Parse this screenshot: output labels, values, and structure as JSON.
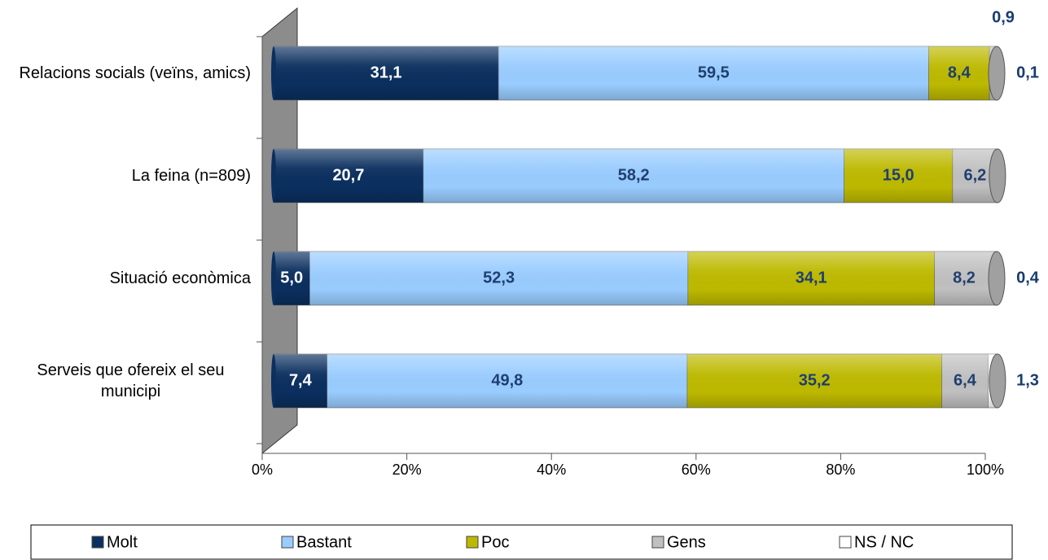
{
  "chart_data": {
    "type": "bar",
    "stacked": true,
    "orientation": "horizontal",
    "categories": [
      "Relacions socials (veïns, amics)",
      "La feina (n=809)",
      "Situació econòmica",
      "Serveis que ofereix el seu municipi"
    ],
    "series": [
      {
        "name": "Molt",
        "color": "#0b2f5f",
        "values": [
          31.1,
          20.7,
          5.0,
          7.4
        ],
        "value_labels": [
          "31,1",
          "20,7",
          "5,0",
          "7,4"
        ]
      },
      {
        "name": "Bastant",
        "color": "#99ccff",
        "values": [
          59.5,
          58.2,
          52.3,
          49.8
        ],
        "value_labels": [
          "59,5",
          "58,2",
          "52,3",
          "49,8"
        ]
      },
      {
        "name": "Poc",
        "color": "#bdb900",
        "values": [
          8.4,
          15.0,
          34.1,
          35.2
        ],
        "value_labels": [
          "8,4",
          "15,0",
          "34,1",
          "35,2"
        ]
      },
      {
        "name": "Gens",
        "color": "#c0c0c0",
        "values": [
          0.9,
          6.2,
          8.2,
          6.4
        ],
        "value_labels": [
          "0,9",
          "6,2",
          "8,2",
          "6,4"
        ]
      },
      {
        "name": "NS / NC",
        "color": "#ffffff",
        "values": [
          0.1,
          0,
          0.4,
          1.3
        ],
        "value_labels": [
          "0,1",
          null,
          "0,4",
          "1,3"
        ]
      }
    ],
    "xlim": [
      0,
      100
    ],
    "xticks": [
      {
        "value": 0,
        "label": "0%"
      },
      {
        "value": 20,
        "label": "20%"
      },
      {
        "value": 40,
        "label": "40%"
      },
      {
        "value": 60,
        "label": "60%"
      },
      {
        "value": 80,
        "label": "80%"
      },
      {
        "value": 100,
        "label": "100%"
      }
    ],
    "legend": "bottom"
  }
}
